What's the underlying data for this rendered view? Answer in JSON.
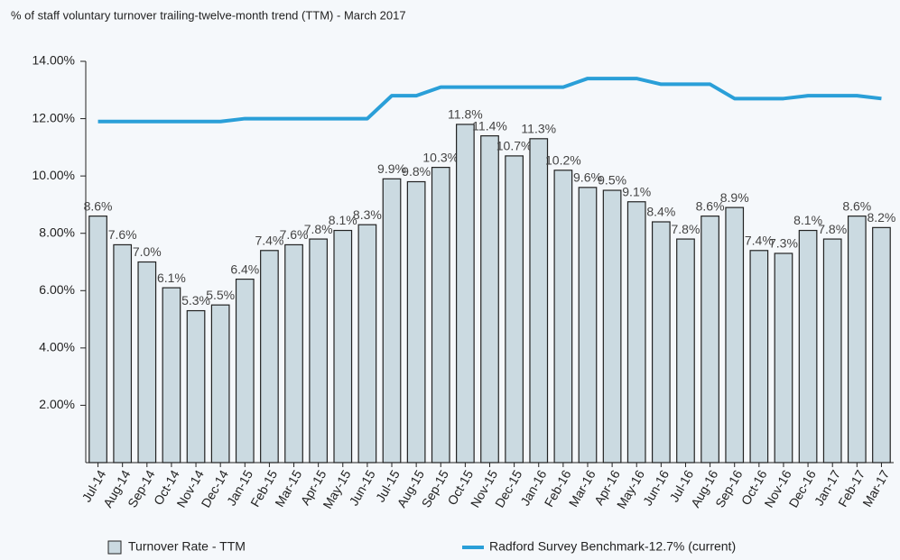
{
  "chart_data": {
    "type": "bar",
    "title": "% of staff voluntary turnover trailing-twelve-month trend (TTM) - March 2017",
    "categories": [
      "Jul-14",
      "Aug-14",
      "Sep-14",
      "Oct-14",
      "Nov-14",
      "Dec-14",
      "Jan-15",
      "Feb-15",
      "Mar-15",
      "Apr-15",
      "May-15",
      "Jun-15",
      "Jul-15",
      "Aug-15",
      "Sep-15",
      "Oct-15",
      "Nov-15",
      "Dec-15",
      "Jan-16",
      "Feb-16",
      "Mar-16",
      "Apr-16",
      "May-16",
      "Jun-16",
      "Jul-16",
      "Aug-16",
      "Sep-16",
      "Oct-16",
      "Nov-16",
      "Dec-16",
      "Jan-17",
      "Feb-17",
      "Mar-17"
    ],
    "series": [
      {
        "name": "Turnover Rate - TTM",
        "type": "bar",
        "color": "#cbdae1",
        "values": [
          8.6,
          7.6,
          7.0,
          6.1,
          5.3,
          5.5,
          6.4,
          7.4,
          7.6,
          7.8,
          8.1,
          8.3,
          9.9,
          9.8,
          10.3,
          11.8,
          11.4,
          10.7,
          11.3,
          10.2,
          9.6,
          9.5,
          9.1,
          8.4,
          7.8,
          8.6,
          8.9,
          7.4,
          7.3,
          8.1,
          7.8,
          8.6,
          8.2
        ],
        "value_labels": [
          "8.6%",
          "7.6%",
          "7.0%",
          "6.1%",
          "5.3%",
          "5.5%",
          "6.4%",
          "7.4%",
          "7.6%",
          "7.8%",
          "8.1%",
          "8.3%",
          "9.9%",
          "9.8%",
          "10.3%",
          "11.8%",
          "11.4%",
          "10.7%",
          "11.3%",
          "10.2%",
          "9.6%",
          "9.5%",
          "9.1%",
          "8.4%",
          "7.8%",
          "8.6%",
          "8.9%",
          "7.4%",
          "7.3%",
          "8.1%",
          "7.8%",
          "8.6%",
          "8.2%"
        ]
      },
      {
        "name": "Radford Survey Benchmark-12.7% (current)",
        "type": "line",
        "color": "#2a9fd8",
        "values": [
          11.9,
          11.9,
          11.9,
          11.9,
          11.9,
          11.9,
          12.0,
          12.0,
          12.0,
          12.0,
          12.0,
          12.0,
          12.8,
          12.8,
          13.1,
          13.1,
          13.1,
          13.1,
          13.1,
          13.1,
          13.4,
          13.4,
          13.4,
          13.2,
          13.2,
          13.2,
          12.7,
          12.7,
          12.7,
          12.8,
          12.8,
          12.8,
          12.7
        ]
      }
    ],
    "ylim": [
      0,
      14
    ],
    "yticks": [
      {
        "value": 2,
        "label": "2.00%"
      },
      {
        "value": 4,
        "label": "4.00%"
      },
      {
        "value": 6,
        "label": "6.00%"
      },
      {
        "value": 8,
        "label": "8.00%"
      },
      {
        "value": 10,
        "label": "10.00%"
      },
      {
        "value": 12,
        "label": "12.00%"
      },
      {
        "value": 14,
        "label": "14.00%"
      }
    ]
  }
}
